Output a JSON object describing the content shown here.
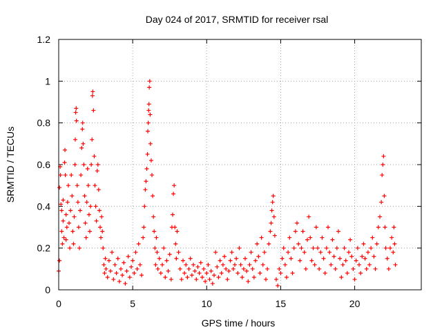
{
  "chart_data": {
    "type": "scatter",
    "title": "Day 024 of 2017, SRMTID for receiver rsal",
    "xlabel": "GPS time / hours",
    "ylabel": "SRMTID / TECUs",
    "xlim": [
      0,
      24.5
    ],
    "ylim": [
      0,
      1.2
    ],
    "x_ticks": [
      0,
      5,
      10,
      15,
      20
    ],
    "x_tick_labels": [
      "0",
      "5",
      "10",
      "15",
      "20"
    ],
    "y_ticks": [
      0,
      0.2,
      0.4,
      0.6,
      0.8,
      1.0,
      1.2
    ],
    "y_tick_labels": [
      "0",
      "0.2",
      "0.4",
      "0.6",
      "0.8",
      "1",
      "1.2"
    ],
    "grid": true,
    "marker": "+",
    "series": [
      {
        "name": "SRMTID",
        "color": "#ff0000",
        "points": [
          [
            0.0,
            0.09
          ],
          [
            0.05,
            0.14
          ],
          [
            0.05,
            0.49
          ],
          [
            0.1,
            0.59
          ],
          [
            0.12,
            0.55
          ],
          [
            0.15,
            0.41
          ],
          [
            0.2,
            0.38
          ],
          [
            0.2,
            0.28
          ],
          [
            0.25,
            0.22
          ],
          [
            0.3,
            0.43
          ],
          [
            0.3,
            0.33
          ],
          [
            0.35,
            0.25
          ],
          [
            0.4,
            0.61
          ],
          [
            0.42,
            0.67
          ],
          [
            0.45,
            0.55
          ],
          [
            0.5,
            0.36
          ],
          [
            0.5,
            0.24
          ],
          [
            0.55,
            0.3
          ],
          [
            0.6,
            0.42
          ],
          [
            0.65,
            0.5
          ],
          [
            0.7,
            0.32
          ],
          [
            0.75,
            0.2
          ],
          [
            0.8,
            0.38
          ],
          [
            0.85,
            0.55
          ],
          [
            0.9,
            0.45
          ],
          [
            0.95,
            0.28
          ],
          [
            1.0,
            0.22
          ],
          [
            1.05,
            0.35
          ],
          [
            1.1,
            0.6
          ],
          [
            1.12,
            0.72
          ],
          [
            1.15,
            0.85
          ],
          [
            1.18,
            0.87
          ],
          [
            1.2,
            0.81
          ],
          [
            1.25,
            0.5
          ],
          [
            1.3,
            0.42
          ],
          [
            1.35,
            0.3
          ],
          [
            1.4,
            0.2
          ],
          [
            1.45,
            0.38
          ],
          [
            1.5,
            0.55
          ],
          [
            1.55,
            0.68
          ],
          [
            1.6,
            0.77
          ],
          [
            1.62,
            0.8
          ],
          [
            1.65,
            0.7
          ],
          [
            1.7,
            0.6
          ],
          [
            1.75,
            0.45
          ],
          [
            1.8,
            0.32
          ],
          [
            1.85,
            0.25
          ],
          [
            1.9,
            0.42
          ],
          [
            1.95,
            0.58
          ],
          [
            2.0,
            0.5
          ],
          [
            2.05,
            0.36
          ],
          [
            2.1,
            0.28
          ],
          [
            2.15,
            0.4
          ],
          [
            2.2,
            0.6
          ],
          [
            2.25,
            0.72
          ],
          [
            2.28,
            0.93
          ],
          [
            2.3,
            0.95
          ],
          [
            2.35,
            0.86
          ],
          [
            2.4,
            0.64
          ],
          [
            2.45,
            0.5
          ],
          [
            2.5,
            0.4
          ],
          [
            2.55,
            0.33
          ],
          [
            2.6,
            0.57
          ],
          [
            2.65,
            0.6
          ],
          [
            2.7,
            0.48
          ],
          [
            2.75,
            0.38
          ],
          [
            2.8,
            0.3
          ],
          [
            2.85,
            0.25
          ],
          [
            2.9,
            0.35
          ],
          [
            2.95,
            0.28
          ],
          [
            3.0,
            0.2
          ],
          [
            3.05,
            0.12
          ],
          [
            3.1,
            0.08
          ],
          [
            3.15,
            0.15
          ],
          [
            3.2,
            0.1
          ],
          [
            3.3,
            0.06
          ],
          [
            3.4,
            0.14
          ],
          [
            3.5,
            0.09
          ],
          [
            3.6,
            0.18
          ],
          [
            3.7,
            0.05
          ],
          [
            3.8,
            0.12
          ],
          [
            3.9,
            0.08
          ],
          [
            4.0,
            0.15
          ],
          [
            4.1,
            0.04
          ],
          [
            4.2,
            0.1
          ],
          [
            4.3,
            0.07
          ],
          [
            4.4,
            0.13
          ],
          [
            4.5,
            0.03
          ],
          [
            4.6,
            0.09
          ],
          [
            4.7,
            0.16
          ],
          [
            4.8,
            0.06
          ],
          [
            4.9,
            0.11
          ],
          [
            5.0,
            0.14
          ],
          [
            5.1,
            0.08
          ],
          [
            5.2,
            0.18
          ],
          [
            5.3,
            0.1
          ],
          [
            5.4,
            0.22
          ],
          [
            5.5,
            0.12
          ],
          [
            5.6,
            0.07
          ],
          [
            5.7,
            0.25
          ],
          [
            5.75,
            0.3
          ],
          [
            5.8,
            0.4
          ],
          [
            5.85,
            0.48
          ],
          [
            5.9,
            0.52
          ],
          [
            5.95,
            0.58
          ],
          [
            6.0,
            0.65
          ],
          [
            6.02,
            0.76
          ],
          [
            6.05,
            0.8
          ],
          [
            6.08,
            0.86
          ],
          [
            6.1,
            0.89
          ],
          [
            6.12,
            0.97
          ],
          [
            6.15,
            1.0
          ],
          [
            6.18,
            0.84
          ],
          [
            6.2,
            0.7
          ],
          [
            6.25,
            0.62
          ],
          [
            6.3,
            0.55
          ],
          [
            6.35,
            0.45
          ],
          [
            6.4,
            0.35
          ],
          [
            6.45,
            0.28
          ],
          [
            6.5,
            0.2
          ],
          [
            6.55,
            0.12
          ],
          [
            6.6,
            0.25
          ],
          [
            6.65,
            0.18
          ],
          [
            6.7,
            0.1
          ],
          [
            6.8,
            0.15
          ],
          [
            6.9,
            0.08
          ],
          [
            7.0,
            0.12
          ],
          [
            7.1,
            0.2
          ],
          [
            7.2,
            0.06
          ],
          [
            7.3,
            0.14
          ],
          [
            7.4,
            0.09
          ],
          [
            7.5,
            0.17
          ],
          [
            7.6,
            0.05
          ],
          [
            7.65,
            0.3
          ],
          [
            7.7,
            0.36
          ],
          [
            7.75,
            0.46
          ],
          [
            7.8,
            0.5
          ],
          [
            7.85,
            0.3
          ],
          [
            7.9,
            0.22
          ],
          [
            7.95,
            0.15
          ],
          [
            8.0,
            0.28
          ],
          [
            8.1,
            0.18
          ],
          [
            8.2,
            0.1
          ],
          [
            8.3,
            0.05
          ],
          [
            8.4,
            0.14
          ],
          [
            8.5,
            0.08
          ],
          [
            8.6,
            0.12
          ],
          [
            8.7,
            0.06
          ],
          [
            8.8,
            0.1
          ],
          [
            8.9,
            0.15
          ],
          [
            9.0,
            0.07
          ],
          [
            9.1,
            0.12
          ],
          [
            9.2,
            0.09
          ],
          [
            9.3,
            0.05
          ],
          [
            9.4,
            0.11
          ],
          [
            9.5,
            0.08
          ],
          [
            9.6,
            0.13
          ],
          [
            9.7,
            0.06
          ],
          [
            9.8,
            0.1
          ],
          [
            9.9,
            0.04
          ],
          [
            10.0,
            0.08
          ],
          [
            10.1,
            0.12
          ],
          [
            10.2,
            0.05
          ],
          [
            10.3,
            0.09
          ],
          [
            10.4,
            0.03
          ],
          [
            10.5,
            0.07
          ],
          [
            10.6,
            0.18
          ],
          [
            10.7,
            0.11
          ],
          [
            10.8,
            0.06
          ],
          [
            10.9,
            0.14
          ],
          [
            11.0,
            0.08
          ],
          [
            11.1,
            0.12
          ],
          [
            11.2,
            0.16
          ],
          [
            11.3,
            0.1
          ],
          [
            11.4,
            0.05
          ],
          [
            11.5,
            0.09
          ],
          [
            11.6,
            0.14
          ],
          [
            11.7,
            0.18
          ],
          [
            11.8,
            0.1
          ],
          [
            11.9,
            0.12
          ],
          [
            12.0,
            0.15
          ],
          [
            12.1,
            0.08
          ],
          [
            12.2,
            0.2
          ],
          [
            12.3,
            0.12
          ],
          [
            12.4,
            0.06
          ],
          [
            12.5,
            0.1
          ],
          [
            12.6,
            0.15
          ],
          [
            12.7,
            0.09
          ],
          [
            12.8,
            0.04
          ],
          [
            12.9,
            0.12
          ],
          [
            13.0,
            0.18
          ],
          [
            13.1,
            0.1
          ],
          [
            13.2,
            0.06
          ],
          [
            13.3,
            0.14
          ],
          [
            13.4,
            0.22
          ],
          [
            13.5,
            0.16
          ],
          [
            13.6,
            0.08
          ],
          [
            13.7,
            0.25
          ],
          [
            13.8,
            0.12
          ],
          [
            13.9,
            0.18
          ],
          [
            14.0,
            0.05
          ],
          [
            14.1,
            0.1
          ],
          [
            14.2,
            0.22
          ],
          [
            14.3,
            0.28
          ],
          [
            14.35,
            0.32
          ],
          [
            14.4,
            0.38
          ],
          [
            14.45,
            0.42
          ],
          [
            14.5,
            0.45
          ],
          [
            14.55,
            0.35
          ],
          [
            14.6,
            0.26
          ],
          [
            14.7,
            0.05
          ],
          [
            14.8,
            0.02
          ],
          [
            14.9,
            0.1
          ],
          [
            15.0,
            0.08
          ],
          [
            15.1,
            0.15
          ],
          [
            15.2,
            0.2
          ],
          [
            15.3,
            0.12
          ],
          [
            15.4,
            0.06
          ],
          [
            15.5,
            0.18
          ],
          [
            15.6,
            0.25
          ],
          [
            15.7,
            0.15
          ],
          [
            15.8,
            0.08
          ],
          [
            15.9,
            0.2
          ],
          [
            16.0,
            0.28
          ],
          [
            16.1,
            0.32
          ],
          [
            16.2,
            0.22
          ],
          [
            16.3,
            0.14
          ],
          [
            16.4,
            0.2
          ],
          [
            16.5,
            0.28
          ],
          [
            16.6,
            0.18
          ],
          [
            16.7,
            0.1
          ],
          [
            16.8,
            0.24
          ],
          [
            16.9,
            0.35
          ],
          [
            17.0,
            0.25
          ],
          [
            17.1,
            0.14
          ],
          [
            17.2,
            0.2
          ],
          [
            17.3,
            0.12
          ],
          [
            17.4,
            0.3
          ],
          [
            17.5,
            0.2
          ],
          [
            17.6,
            0.1
          ],
          [
            17.7,
            0.18
          ],
          [
            17.8,
            0.25
          ],
          [
            17.9,
            0.15
          ],
          [
            18.0,
            0.08
          ],
          [
            18.1,
            0.2
          ],
          [
            18.2,
            0.3
          ],
          [
            18.3,
            0.18
          ],
          [
            18.4,
            0.12
          ],
          [
            18.5,
            0.24
          ],
          [
            18.6,
            0.16
          ],
          [
            18.7,
            0.1
          ],
          [
            18.8,
            0.2
          ],
          [
            18.9,
            0.28
          ],
          [
            19.0,
            0.15
          ],
          [
            19.1,
            0.06
          ],
          [
            19.2,
            0.12
          ],
          [
            19.3,
            0.2
          ],
          [
            19.4,
            0.14
          ],
          [
            19.5,
            0.08
          ],
          [
            19.6,
            0.18
          ],
          [
            19.7,
            0.24
          ],
          [
            19.8,
            0.16
          ],
          [
            19.9,
            0.1
          ],
          [
            20.0,
            0.05
          ],
          [
            20.1,
            0.14
          ],
          [
            20.2,
            0.2
          ],
          [
            20.3,
            0.12
          ],
          [
            20.4,
            0.08
          ],
          [
            20.5,
            0.16
          ],
          [
            20.6,
            0.22
          ],
          [
            20.7,
            0.15
          ],
          [
            20.8,
            0.1
          ],
          [
            20.9,
            0.18
          ],
          [
            21.0,
            0.12
          ],
          [
            21.1,
            0.2
          ],
          [
            21.2,
            0.25
          ],
          [
            21.3,
            0.16
          ],
          [
            21.4,
            0.1
          ],
          [
            21.5,
            0.22
          ],
          [
            21.6,
            0.3
          ],
          [
            21.7,
            0.35
          ],
          [
            21.8,
            0.42
          ],
          [
            21.85,
            0.55
          ],
          [
            21.9,
            0.6
          ],
          [
            21.95,
            0.64
          ],
          [
            22.0,
            0.45
          ],
          [
            22.05,
            0.3
          ],
          [
            22.1,
            0.2
          ],
          [
            22.2,
            0.15
          ],
          [
            22.3,
            0.1
          ],
          [
            22.4,
            0.2
          ],
          [
            22.5,
            0.25
          ],
          [
            22.6,
            0.18
          ],
          [
            22.65,
            0.3
          ],
          [
            22.7,
            0.22
          ],
          [
            22.75,
            0.12
          ]
        ]
      }
    ]
  }
}
